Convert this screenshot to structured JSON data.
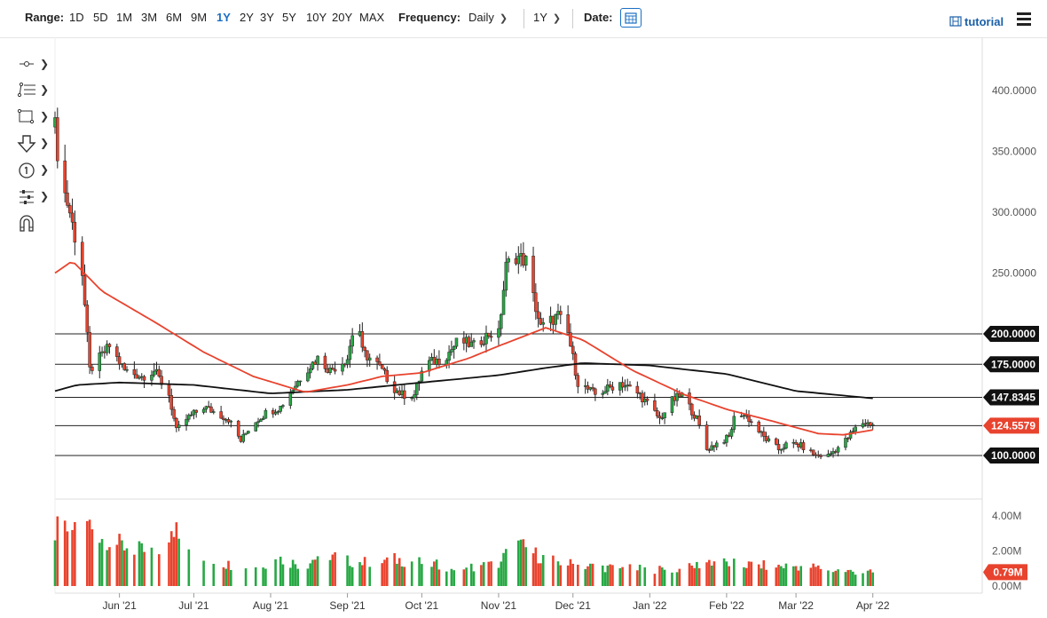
{
  "toolbar": {
    "range_label": "Range:",
    "ranges": [
      "1D",
      "5D",
      "1M",
      "3M",
      "6M",
      "9M",
      "1Y",
      "2Y",
      "3Y",
      "5Y",
      "10Y",
      "20Y",
      "MAX"
    ],
    "active_range": "1Y",
    "frequency_label": "Frequency:",
    "frequency_value": "Daily",
    "period_value": "1Y",
    "date_label": "Date:",
    "tutorial_label": "tutorial",
    "accent_color": "#1a6fc4"
  },
  "drawing_tools": [
    "line-tool-icon",
    "fib-tool-icon",
    "rectangle-tool-icon",
    "arrow-down-tool-icon",
    "number-marker-icon",
    "tools-settings-icon",
    "magnet-icon"
  ],
  "chart_data": [
    {
      "type": "candlestick",
      "y_ticks": [
        "400.0000",
        "350.0000",
        "300.0000",
        "250.0000"
      ],
      "ylim": [
        60,
        420
      ],
      "x_tick_labels": [
        "Jun '21",
        "Jul '21",
        "Aug '21",
        "Sep '21",
        "Oct '21",
        "Nov '21",
        "Dec '21",
        "Jan '22",
        "Feb '22",
        "Mar '22",
        "Apr '22"
      ],
      "x_tick_dates": [
        "2021-06-01",
        "2021-07-01",
        "2021-08-01",
        "2021-09-01",
        "2021-10-01",
        "2021-11-01",
        "2021-12-01",
        "2022-01-01",
        "2022-02-01",
        "2022-03-01",
        "2022-04-01"
      ],
      "x_range": [
        "2021-05-06",
        "2022-04-14"
      ],
      "horizontal_levels": [
        {
          "value": 200,
          "label": "200.0000"
        },
        {
          "value": 175,
          "label": "175.0000"
        },
        {
          "value": 147.8345,
          "label": "147.8345"
        },
        {
          "value": 124.5579,
          "label": "124.5579",
          "color": "#e8432e"
        },
        {
          "value": 100,
          "label": "100.0000"
        }
      ],
      "up_color": "#27a844",
      "down_color": "#e8432e",
      "close_path": [
        [
          "2021-05-06",
          370
        ],
        [
          "2021-05-08",
          330
        ],
        [
          "2021-05-12",
          300
        ],
        [
          "2021-05-17",
          250
        ],
        [
          "2021-05-20",
          170
        ],
        [
          "2021-05-24",
          180
        ],
        [
          "2021-05-28",
          190
        ],
        [
          "2021-06-03",
          170
        ],
        [
          "2021-06-10",
          165
        ],
        [
          "2021-06-15",
          170
        ],
        [
          "2021-06-21",
          150
        ],
        [
          "2021-06-24",
          120
        ],
        [
          "2021-06-28",
          130
        ],
        [
          "2021-07-05",
          140
        ],
        [
          "2021-07-10",
          135
        ],
        [
          "2021-07-15",
          130
        ],
        [
          "2021-07-20",
          112
        ],
        [
          "2021-07-24",
          125
        ],
        [
          "2021-07-30",
          135
        ],
        [
          "2021-08-05",
          140
        ],
        [
          "2021-08-10",
          155
        ],
        [
          "2021-08-15",
          170
        ],
        [
          "2021-08-20",
          180
        ],
        [
          "2021-08-25",
          170
        ],
        [
          "2021-09-01",
          180
        ],
        [
          "2021-09-05",
          220
        ],
        [
          "2021-09-07",
          185
        ],
        [
          "2021-09-13",
          175
        ],
        [
          "2021-09-20",
          155
        ],
        [
          "2021-09-23",
          150
        ],
        [
          "2021-09-28",
          150
        ],
        [
          "2021-10-02",
          175
        ],
        [
          "2021-10-10",
          180
        ],
        [
          "2021-10-16",
          195
        ],
        [
          "2021-10-22",
          190
        ],
        [
          "2021-10-28",
          200
        ],
        [
          "2021-11-01",
          200
        ],
        [
          "2021-11-04",
          255
        ],
        [
          "2021-11-07",
          265
        ],
        [
          "2021-11-12",
          260
        ],
        [
          "2021-11-15",
          230
        ],
        [
          "2021-11-18",
          205
        ],
        [
          "2021-11-25",
          215
        ],
        [
          "2021-11-29",
          200
        ],
        [
          "2021-12-03",
          160
        ],
        [
          "2021-12-10",
          150
        ],
        [
          "2021-12-20",
          160
        ],
        [
          "2021-12-28",
          150
        ],
        [
          "2022-01-05",
          130
        ],
        [
          "2022-01-10",
          145
        ],
        [
          "2022-01-14",
          150
        ],
        [
          "2022-01-20",
          130
        ],
        [
          "2022-01-24",
          105
        ],
        [
          "2022-01-28",
          110
        ],
        [
          "2022-02-02",
          115
        ],
        [
          "2022-02-05",
          138
        ],
        [
          "2022-02-10",
          130
        ],
        [
          "2022-02-16",
          115
        ],
        [
          "2022-02-22",
          105
        ],
        [
          "2022-02-26",
          110
        ],
        [
          "2022-03-03",
          108
        ],
        [
          "2022-03-09",
          100
        ],
        [
          "2022-03-14",
          100
        ],
        [
          "2022-03-20",
          110
        ],
        [
          "2022-03-25",
          122
        ],
        [
          "2022-03-28",
          127
        ],
        [
          "2022-04-01",
          126
        ]
      ],
      "ma_red": [
        [
          "2021-05-06",
          250
        ],
        [
          "2021-05-13",
          260
        ],
        [
          "2021-05-25",
          235
        ],
        [
          "2021-06-15",
          210
        ],
        [
          "2021-07-05",
          185
        ],
        [
          "2021-07-25",
          165
        ],
        [
          "2021-08-15",
          152
        ],
        [
          "2021-09-01",
          158
        ],
        [
          "2021-09-15",
          165
        ],
        [
          "2021-10-01",
          168
        ],
        [
          "2021-10-20",
          180
        ],
        [
          "2021-11-01",
          190
        ],
        [
          "2021-11-20",
          205
        ],
        [
          "2021-12-05",
          195
        ],
        [
          "2021-12-25",
          170
        ],
        [
          "2022-01-15",
          150
        ],
        [
          "2022-02-01",
          138
        ],
        [
          "2022-02-20",
          128
        ],
        [
          "2022-03-10",
          118
        ],
        [
          "2022-03-20",
          117
        ],
        [
          "2022-04-01",
          121
        ]
      ],
      "ma_black": [
        [
          "2021-05-06",
          153
        ],
        [
          "2021-05-15",
          158
        ],
        [
          "2021-06-01",
          160
        ],
        [
          "2021-07-01",
          158
        ],
        [
          "2021-08-01",
          151
        ],
        [
          "2021-09-01",
          154
        ],
        [
          "2021-10-01",
          160
        ],
        [
          "2021-11-01",
          166
        ],
        [
          "2021-11-20",
          172
        ],
        [
          "2021-12-05",
          176
        ],
        [
          "2022-01-01",
          174
        ],
        [
          "2022-02-01",
          167
        ],
        [
          "2022-03-01",
          153
        ],
        [
          "2022-04-01",
          147
        ]
      ]
    },
    {
      "type": "bar",
      "y_ticks": [
        "4.00M",
        "2.00M",
        "0.00M"
      ],
      "ylim": [
        0,
        4.4
      ],
      "last_value_label": "0.79M",
      "volume_path": [
        [
          "2021-05-06",
          3.3
        ],
        [
          "2021-05-12",
          3.4
        ],
        [
          "2021-05-18",
          3.9
        ],
        [
          "2021-05-25",
          3.1
        ],
        [
          "2021-06-01",
          2.5
        ],
        [
          "2021-06-10",
          2.1
        ],
        [
          "2021-06-20",
          1.9
        ],
        [
          "2021-06-24",
          3.8
        ],
        [
          "2021-06-28",
          2.6
        ],
        [
          "2021-07-05",
          1.6
        ],
        [
          "2021-07-15",
          1.3
        ],
        [
          "2021-07-25",
          1.2
        ],
        [
          "2021-08-05",
          1.6
        ],
        [
          "2021-08-15",
          1.2
        ],
        [
          "2021-08-22",
          2.1
        ],
        [
          "2021-09-01",
          1.5
        ],
        [
          "2021-09-10",
          1.4
        ],
        [
          "2021-09-20",
          1.6
        ],
        [
          "2021-10-01",
          1.4
        ],
        [
          "2021-10-15",
          1.1
        ],
        [
          "2021-11-01",
          1.3
        ],
        [
          "2021-11-07",
          2.6
        ],
        [
          "2021-11-20",
          1.6
        ],
        [
          "2021-12-01",
          1.3
        ],
        [
          "2021-12-15",
          1.1
        ],
        [
          "2022-01-01",
          1.0
        ],
        [
          "2022-01-15",
          1.0
        ],
        [
          "2022-01-25",
          1.5
        ],
        [
          "2022-02-05",
          1.3
        ],
        [
          "2022-02-20",
          1.2
        ],
        [
          "2022-03-05",
          1.2
        ],
        [
          "2022-03-20",
          0.9
        ],
        [
          "2022-04-01",
          0.8
        ]
      ]
    }
  ]
}
